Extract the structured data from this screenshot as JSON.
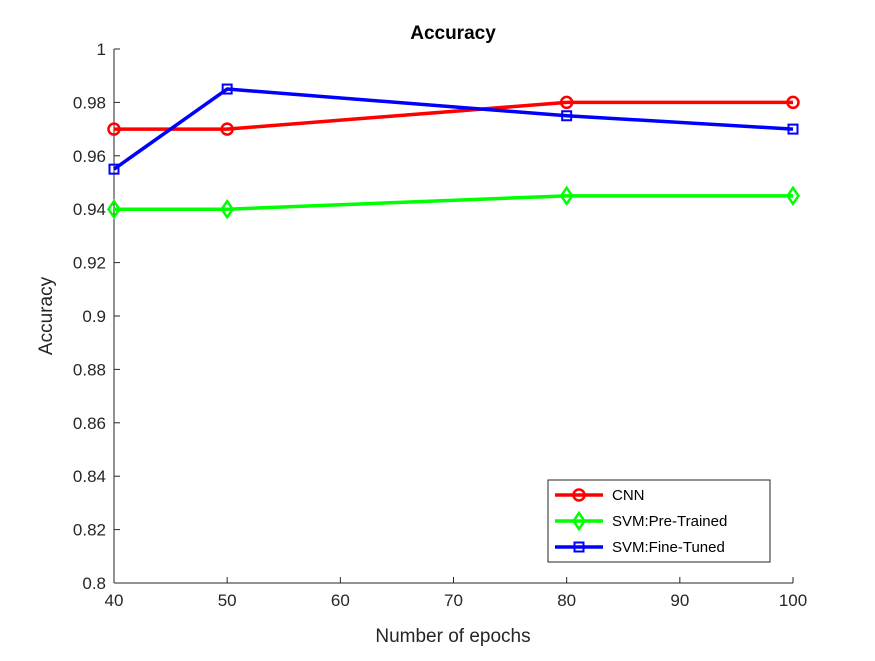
{
  "chart_data": {
    "type": "line",
    "title": "Accuracy",
    "xlabel": "Number of epochs",
    "ylabel": "Accuracy",
    "xlim": [
      40,
      100
    ],
    "ylim": [
      0.8,
      1
    ],
    "xticks": [
      40,
      50,
      60,
      70,
      80,
      90,
      100
    ],
    "xtick_labels": [
      "40",
      "50",
      "60",
      "70",
      "80",
      "90",
      "100"
    ],
    "yticks": [
      0.8,
      0.82,
      0.84,
      0.86,
      0.88,
      0.9,
      0.92,
      0.94,
      0.96,
      0.98,
      1
    ],
    "ytick_labels": [
      "0.8",
      "0.82",
      "0.84",
      "0.86",
      "0.88",
      "0.9",
      "0.92",
      "0.94",
      "0.96",
      "0.98",
      "1"
    ],
    "grid": false,
    "legend_position": "bottom-right",
    "series": [
      {
        "name": "CNN",
        "color": "#ff0000",
        "marker": "circle",
        "x": [
          40,
          50,
          80,
          100
        ],
        "values": [
          0.97,
          0.97,
          0.98,
          0.98
        ]
      },
      {
        "name": "SVM:Pre-Trained",
        "color": "#00ff00",
        "marker": "diamond",
        "x": [
          40,
          50,
          80,
          100
        ],
        "values": [
          0.94,
          0.94,
          0.945,
          0.945
        ]
      },
      {
        "name": "SVM:Fine-Tuned",
        "color": "#0000ff",
        "marker": "square",
        "x": [
          40,
          50,
          80,
          100
        ],
        "values": [
          0.955,
          0.985,
          0.975,
          0.97
        ]
      }
    ]
  }
}
